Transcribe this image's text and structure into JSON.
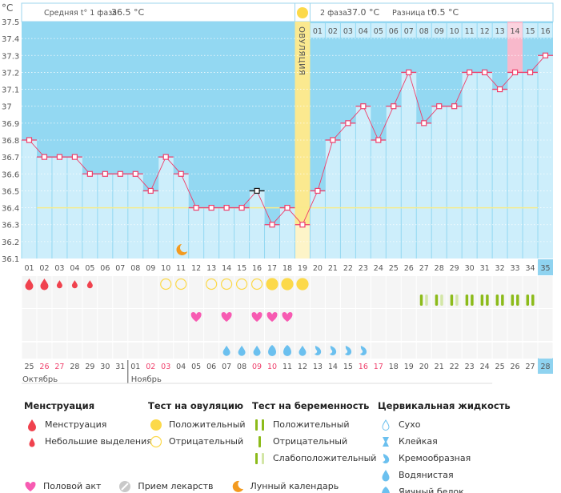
{
  "header": {
    "phase1_label": "Средняя t° 1 фаза",
    "phase1_value": "36.5 °C",
    "phase2_label": "2 фаза",
    "phase2_value": "37.0 °C",
    "diff_label": "Разница t°",
    "diff_value": "0.5 °C",
    "ovulation_label": "ОВУЛЯЦИЯ",
    "unit": "°C"
  },
  "colors": {
    "plot_bg": "#93d8f2",
    "bar": "#cdeefb",
    "line": "#ef3f6b",
    "coverline": "#f7ec8c",
    "ovulation": "#fbe98f",
    "highlight": "#f8b8cb",
    "today": "#8fd3f0"
  },
  "chart_data": {
    "type": "line",
    "title": "",
    "ylabel": "°C",
    "ylim": [
      36.1,
      37.5
    ],
    "yticks": [
      "37.5",
      "37.4",
      "37.3",
      "37.2",
      "37.1",
      "37",
      "36.9",
      "36.8",
      "36.7",
      "36.6",
      "36.5",
      "36.4",
      "36.3",
      "36.2",
      "36.1"
    ],
    "cycle_days": [
      "01",
      "02",
      "03",
      "04",
      "05",
      "06",
      "07",
      "08",
      "09",
      "10",
      "11",
      "12",
      "13",
      "14",
      "15",
      "16",
      "17",
      "18",
      "19",
      "20",
      "21",
      "22",
      "23",
      "24",
      "25",
      "26",
      "27",
      "28",
      "29",
      "30",
      "31",
      "32",
      "33",
      "34",
      "35"
    ],
    "temperatures": [
      36.8,
      36.7,
      36.7,
      36.7,
      36.6,
      36.6,
      36.6,
      36.6,
      36.5,
      36.7,
      36.6,
      36.4,
      36.4,
      36.4,
      36.4,
      36.5,
      36.3,
      36.4,
      36.3,
      36.5,
      36.8,
      36.9,
      37.0,
      36.8,
      37.0,
      37.2,
      36.9,
      37.0,
      37.0,
      37.2,
      37.2,
      37.1,
      37.2,
      37.2,
      37.3
    ],
    "excluded_day": 16,
    "coverline": 36.4,
    "ovulation_day": 19,
    "highlight_day": 33,
    "today_day": 35,
    "phase2_days": [
      "01",
      "02",
      "03",
      "04",
      "05",
      "06",
      "07",
      "08",
      "09",
      "10",
      "11",
      "12",
      "13",
      "14",
      "15",
      "16"
    ],
    "dates": [
      "25",
      "26",
      "27",
      "28",
      "29",
      "30",
      "31",
      "01",
      "02",
      "03",
      "04",
      "05",
      "06",
      "07",
      "08",
      "09",
      "10",
      "11",
      "12",
      "13",
      "14",
      "15",
      "16",
      "17",
      "18",
      "19",
      "20",
      "21",
      "22",
      "23",
      "24",
      "25",
      "26",
      "27",
      "28"
    ],
    "weekend": [
      false,
      true,
      true,
      false,
      false,
      false,
      false,
      false,
      true,
      true,
      false,
      false,
      false,
      false,
      false,
      true,
      true,
      false,
      false,
      false,
      false,
      false,
      true,
      true,
      false,
      false,
      false,
      false,
      false,
      false,
      false,
      false,
      false,
      false,
      false
    ],
    "months": [
      "Октябрь",
      "Ноябрь"
    ],
    "moon_day": 11,
    "menstruation": {
      "1": "heavy",
      "2": "heavy",
      "3": "light",
      "4": "light",
      "5": "light"
    },
    "ovulation_tests": {
      "10": "negative",
      "11": "negative",
      "13": "negative",
      "14": "negative",
      "15": "negative",
      "16": "negative",
      "17": "positive",
      "18": "positive",
      "19": "positive"
    },
    "pregnancy_tests": {
      "27": "weak",
      "28": "weak",
      "29": "weak",
      "30": "positive",
      "31": "positive",
      "32": "positive",
      "33": "positive",
      "34": "positive"
    },
    "intercourse": [
      12,
      14,
      16,
      17,
      18
    ],
    "cervical_fluid": {
      "14": "watery",
      "15": "watery",
      "16": "watery",
      "17": "eggwhite",
      "18": "eggwhite",
      "19": "watery",
      "20": "creamy",
      "21": "creamy",
      "22": "creamy",
      "23": "creamy"
    }
  },
  "legend": {
    "menstruation": {
      "title": "Менструация",
      "items": [
        "Менструация",
        "Небольшие выделения"
      ]
    },
    "ovulation_test": {
      "title": "Тест на овуляцию",
      "items": [
        "Положительный",
        "Отрицательный"
      ]
    },
    "pregnancy_test": {
      "title": "Тест на беременность",
      "items": [
        "Положительный",
        "Отрицательный",
        "Слабоположительный"
      ]
    },
    "cervical": {
      "title": "Цервикальная жидкость",
      "items": [
        "Сухо",
        "Клейкая",
        "Кремообразная",
        "Водянистая",
        "Яичный белок"
      ]
    },
    "other": [
      "Половой акт",
      "Прием лекарств",
      "Лунный календарь"
    ]
  }
}
